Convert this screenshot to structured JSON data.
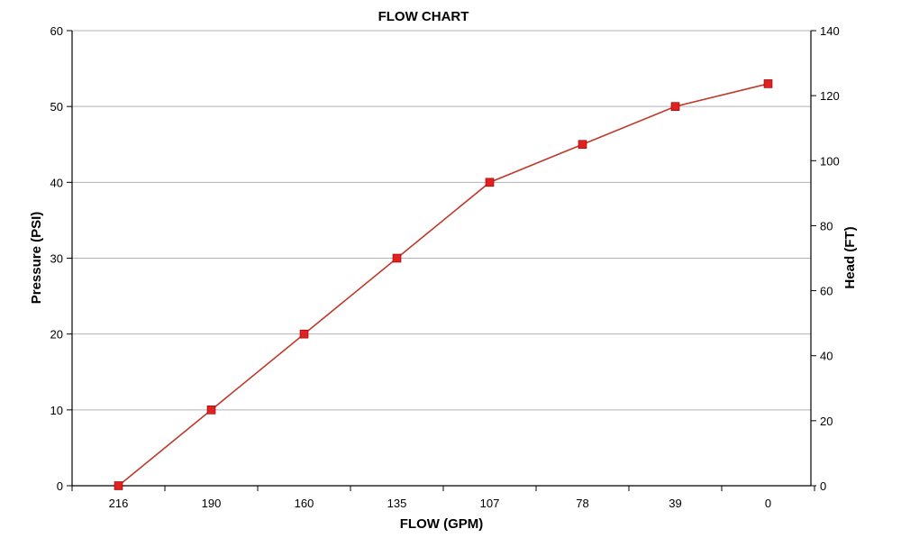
{
  "chart_data": {
    "type": "line",
    "title": "FLOW CHART",
    "xlabel": "FLOW (GPM)",
    "ylabel": "Pressure (PSI)",
    "y2label": "Head (FT)",
    "categories": [
      "216",
      "190",
      "160",
      "135",
      "107",
      "78",
      "39",
      "0"
    ],
    "series": [
      {
        "values": [
          0,
          10,
          20,
          30,
          40,
          45,
          50,
          53
        ]
      }
    ],
    "ylim": [
      0,
      60
    ],
    "yticks": [
      0,
      10,
      20,
      30,
      40,
      50,
      60
    ],
    "y2lim": [
      0,
      140
    ],
    "y2ticks": [
      0,
      20,
      40,
      60,
      80,
      100,
      120,
      140
    ],
    "grid": true,
    "legend": "none",
    "colors": {
      "line": "#c0392b",
      "marker": "#e0211f",
      "grid": "#b3b3b3",
      "axis": "#000000"
    }
  }
}
